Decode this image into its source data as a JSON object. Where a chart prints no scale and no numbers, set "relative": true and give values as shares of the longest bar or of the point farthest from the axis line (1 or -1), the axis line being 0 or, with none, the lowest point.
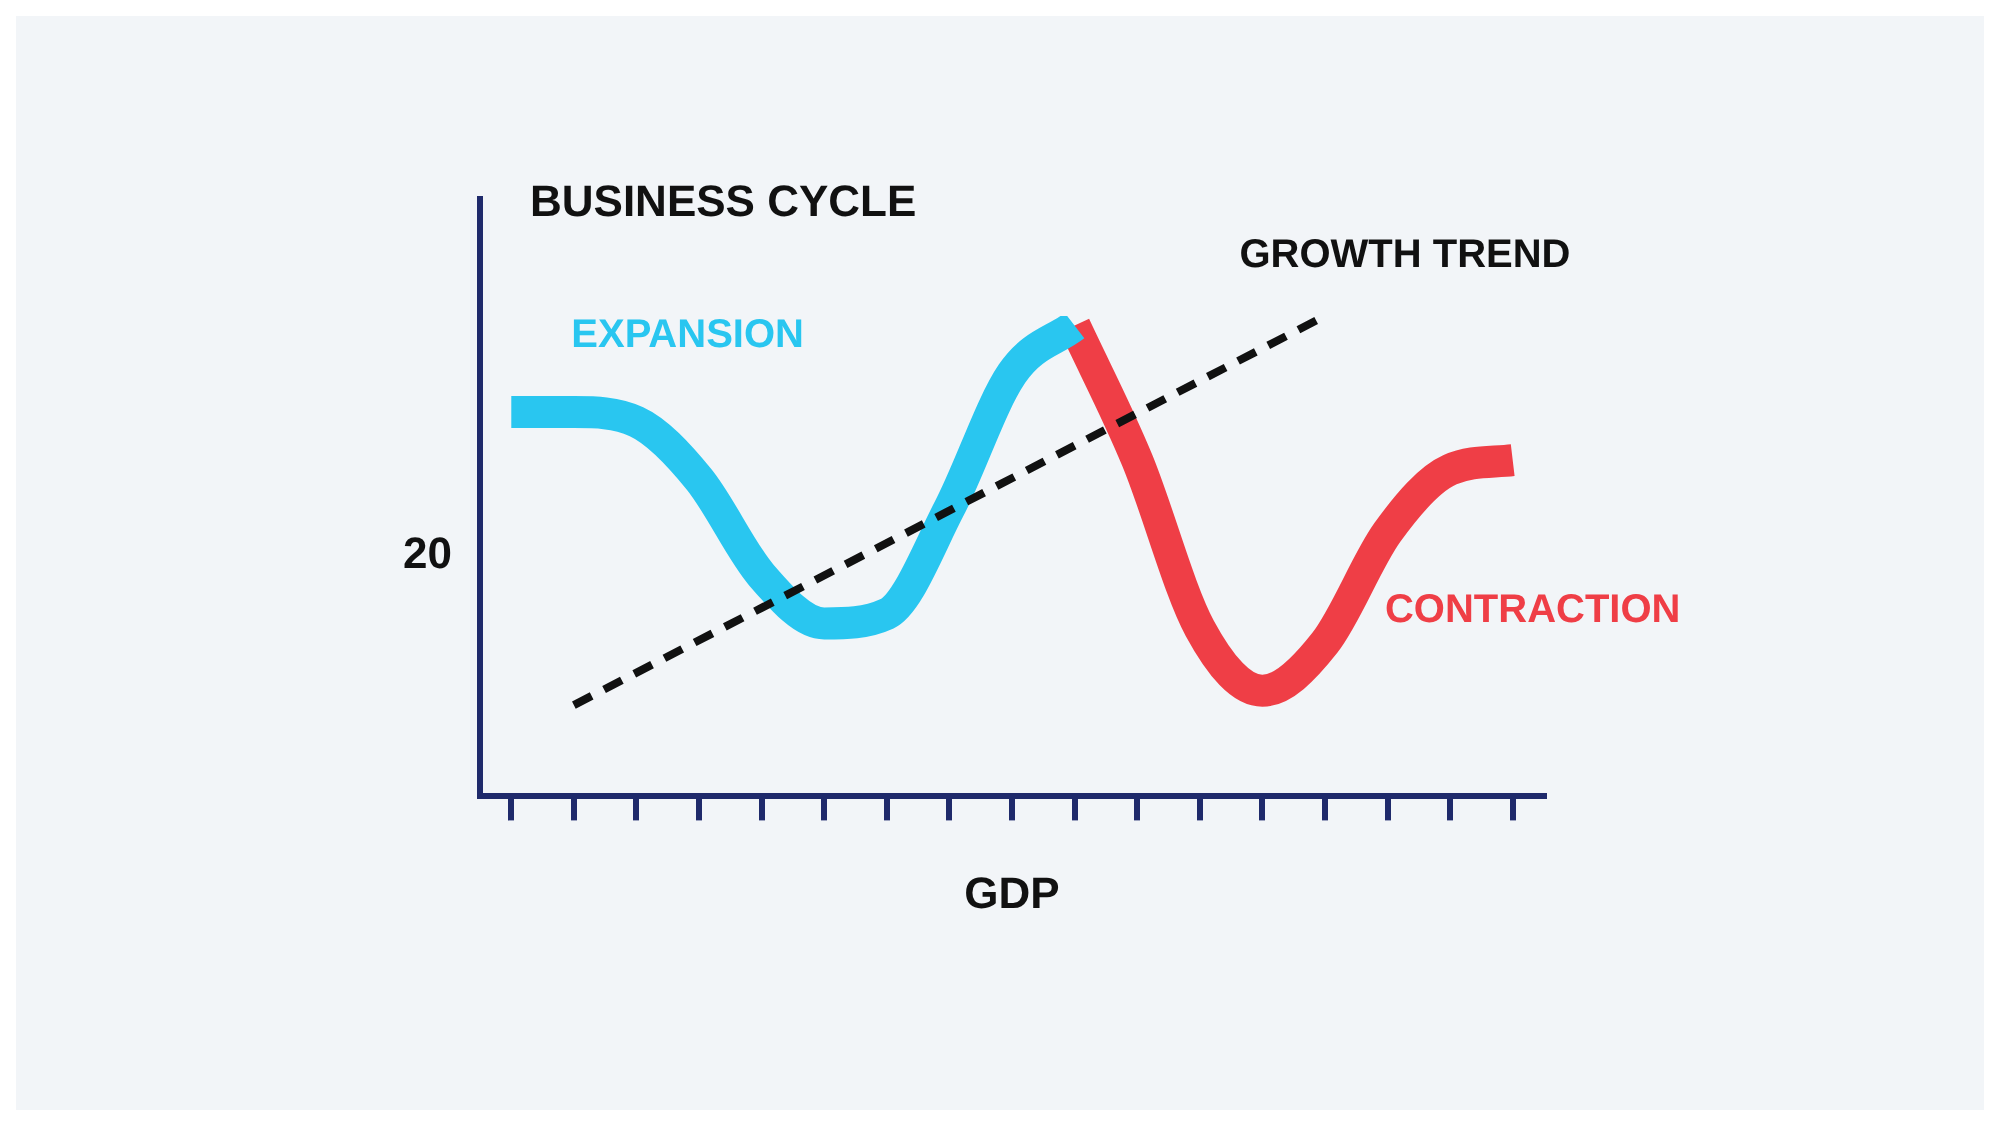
{
  "chart_data": {
    "type": "line",
    "title": "BUSINESS CYCLE",
    "xlabel": "GDP",
    "relative": true,
    "categories": [
      null,
      null,
      null,
      null,
      null,
      null,
      null,
      null,
      null,
      null,
      null,
      null,
      null,
      null,
      null,
      null,
      null
    ],
    "series": [
      {
        "name": "EXPANSION",
        "color": "#29c6f0",
        "values": [
          0.8,
          0.8,
          0.78,
          0.66,
          0.46,
          0.36,
          0.38,
          0.6,
          0.88,
          0.98,
          null,
          null,
          null,
          null,
          null,
          null,
          null
        ]
      },
      {
        "name": "CONTRACTION",
        "color": "#ef3e46",
        "values": [
          null,
          null,
          null,
          null,
          null,
          null,
          null,
          null,
          null,
          0.98,
          0.7,
          0.35,
          0.22,
          0.32,
          0.55,
          0.68,
          0.7
        ]
      },
      {
        "name": "GROWTH TREND",
        "color": "#111111",
        "line_style": "dashed",
        "values": [
          null,
          0.19,
          null,
          null,
          null,
          null,
          null,
          null,
          null,
          null,
          null,
          null,
          null,
          1.0,
          null,
          null,
          null
        ]
      }
    ],
    "annotations": [
      "20"
    ],
    "legend": false,
    "grid": false
  }
}
